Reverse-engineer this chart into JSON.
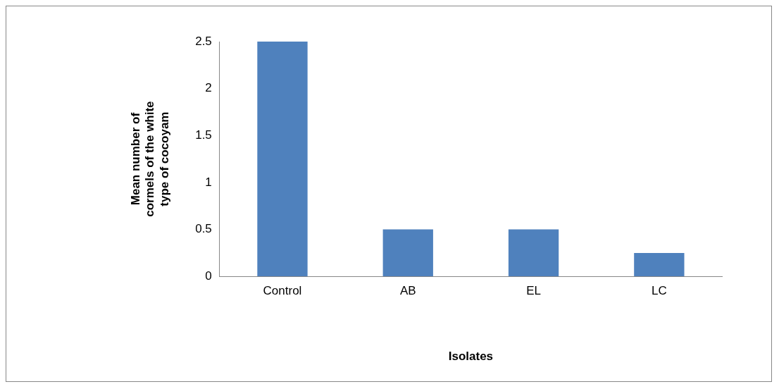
{
  "chart_data": {
    "type": "bar",
    "categories": [
      "Control",
      "AB",
      "EL",
      "LC"
    ],
    "values": [
      2.5,
      0.5,
      0.5,
      0.25
    ],
    "color": "#4f81bd",
    "xlabel": "Isolates",
    "ylabel": "Mean number of cormels of the white type of cocoyam",
    "ylim": [
      0,
      2.5
    ],
    "yticks": [
      0,
      0.5,
      1,
      1.5,
      2,
      2.5
    ],
    "grid": false,
    "legend": false
  }
}
